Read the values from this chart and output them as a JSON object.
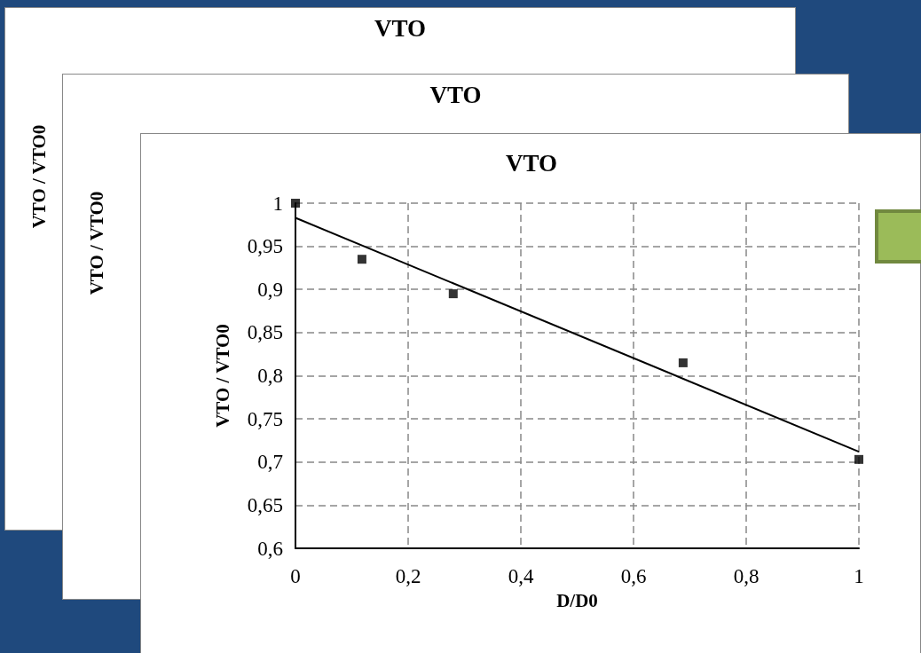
{
  "chart_data": [
    {
      "type": "other",
      "title": "VTO",
      "ylabel": "VTO / VTO0"
    },
    {
      "type": "other",
      "title": "VTO",
      "ylabel": "VTO / VTO0"
    },
    {
      "type": "scatter",
      "title": "VTO",
      "xlabel": "D/D0",
      "ylabel": "VTO / VTO0",
      "xlim": [
        0,
        1
      ],
      "ylim": [
        0.6,
        1
      ],
      "xticks": [
        0,
        {
          "value": 0.2,
          "label": "0,2"
        },
        {
          "value": 0.4,
          "label": "0,4"
        },
        {
          "value": 0.6,
          "label": "0,6"
        },
        {
          "value": 0.8,
          "label": "0,8"
        },
        1
      ],
      "yticks": [
        {
          "value": 0.6,
          "label": "0,6"
        },
        {
          "value": 0.65,
          "label": "0,65"
        },
        {
          "value": 0.7,
          "label": "0,7"
        },
        {
          "value": 0.75,
          "label": "0,75"
        },
        {
          "value": 0.8,
          "label": "0,8"
        },
        {
          "value": 0.85,
          "label": "0,85"
        },
        {
          "value": 0.9,
          "label": "0,9"
        },
        {
          "value": 0.95,
          "label": "0,95"
        },
        1
      ],
      "grid": true,
      "marker": "square",
      "x": [
        0,
        0.118,
        0.28,
        0.688,
        1
      ],
      "series": [
        {
          "color": "#000000",
          "values": [
            1,
            0.935,
            0.895,
            0.815,
            0.703
          ]
        },
        {
          "type": "line",
          "color": "#000000",
          "x": [
            0,
            1
          ],
          "values": [
            0.983,
            0.712
          ],
          "marker": "none",
          "line_style": "solid"
        }
      ]
    }
  ]
}
